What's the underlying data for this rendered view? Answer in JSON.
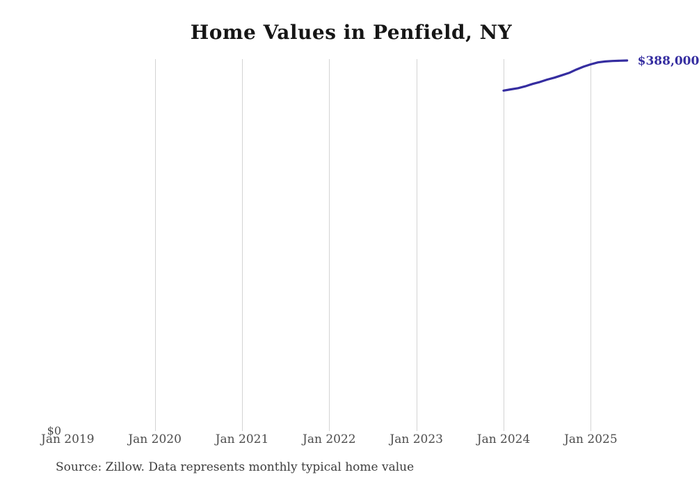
{
  "title": "Home Values in Penfield, NY",
  "source_note": "Source: Zillow. Data represents monthly typical home value",
  "end_label": "$388,000",
  "y_axis": {
    "zero_label": "$0"
  },
  "x_axis": {
    "tick_labels": [
      "Jan 2019",
      "Jan 2020",
      "Jan 2021",
      "Jan 2022",
      "Jan 2023",
      "Jan 2024",
      "Jan 2025"
    ]
  },
  "colors": {
    "line": "#352da0",
    "grid": "#d3d3d3",
    "axis_text": "#4d4d4d",
    "title_text": "#161616",
    "source_text": "#3d3d3d"
  },
  "chart_data": {
    "type": "line",
    "title": "Home Values in Penfield, NY",
    "xlabel": "",
    "ylabel": "",
    "x_axis_range": [
      "Jan 2019",
      "Jun 2025"
    ],
    "ylim": [
      0,
      388000
    ],
    "grid": "vertical-only",
    "legend": "none",
    "series_name": "Typical home value (USD)",
    "x": [
      "Jan 2024",
      "Feb 2024",
      "Mar 2024",
      "Apr 2024",
      "May 2024",
      "Jun 2024",
      "Jul 2024",
      "Aug 2024",
      "Sep 2024",
      "Oct 2024",
      "Nov 2024",
      "Dec 2024",
      "Jan 2025",
      "Feb 2025",
      "Mar 2025",
      "Apr 2025",
      "May 2025",
      "Jun 2025"
    ],
    "values": [
      356500,
      357800,
      359000,
      361000,
      363500,
      365500,
      368000,
      370000,
      372500,
      375000,
      378500,
      381500,
      384000,
      386000,
      387000,
      387500,
      387800,
      388000
    ],
    "end_point_label": "$388,000"
  }
}
